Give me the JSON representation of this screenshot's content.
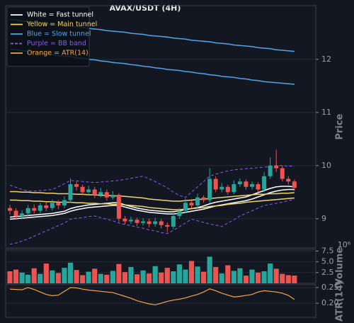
{
  "chart_data": [
    {
      "type": "candlestick",
      "title": "AVAX/USDT (4H)",
      "ylabel": "Price",
      "ylim": [
        8.45,
        13.01
      ],
      "yticks": [
        9,
        10,
        11,
        12
      ],
      "grid": true,
      "legend": "upper left",
      "up_color": "#26a69a",
      "down_color": "#ef5350",
      "open": [
        9.2,
        9.15,
        9.05,
        9.1,
        9.2,
        9.15,
        9.25,
        9.2,
        9.3,
        9.25,
        9.35,
        9.65,
        9.6,
        9.5,
        9.55,
        9.45,
        9.5,
        9.4,
        9.45,
        9.0,
        8.95,
        8.98,
        8.92,
        8.95,
        8.9,
        8.95,
        8.88,
        8.85,
        9.05,
        9.15,
        9.3,
        9.25,
        9.4,
        9.35,
        9.75,
        9.55,
        9.6,
        9.5,
        9.65,
        9.7,
        9.6,
        9.65,
        9.55,
        9.8,
        10.0,
        9.95,
        9.75,
        9.7
      ],
      "high": [
        9.26,
        9.2,
        9.16,
        9.26,
        9.27,
        9.3,
        9.32,
        9.36,
        9.35,
        9.42,
        9.76,
        9.7,
        9.64,
        9.62,
        9.6,
        9.58,
        9.55,
        9.52,
        9.48,
        9.05,
        9.04,
        9.02,
        9.01,
        9.0,
        9.02,
        8.99,
        8.93,
        9.1,
        9.2,
        9.38,
        9.34,
        9.47,
        9.44,
        9.95,
        9.8,
        9.67,
        9.64,
        9.72,
        9.76,
        9.74,
        9.7,
        9.69,
        9.88,
        10.15,
        10.3,
        10.0,
        9.8,
        9.74
      ],
      "low": [
        9.08,
        8.98,
        8.99,
        9.04,
        9.1,
        9.1,
        9.14,
        9.15,
        9.18,
        9.2,
        9.3,
        9.53,
        9.44,
        9.45,
        9.39,
        9.4,
        9.34,
        9.36,
        8.94,
        8.9,
        8.9,
        8.86,
        8.87,
        8.84,
        8.85,
        8.82,
        8.75,
        8.8,
        9.0,
        9.1,
        9.2,
        9.2,
        9.3,
        9.3,
        9.5,
        9.5,
        9.45,
        9.46,
        9.6,
        9.55,
        9.55,
        9.5,
        9.5,
        9.75,
        9.88,
        9.7,
        9.64,
        9.52
      ],
      "close": [
        9.15,
        9.05,
        9.1,
        9.2,
        9.15,
        9.25,
        9.2,
        9.3,
        9.25,
        9.35,
        9.65,
        9.6,
        9.5,
        9.55,
        9.45,
        9.5,
        9.4,
        9.45,
        9.0,
        8.95,
        8.98,
        8.92,
        8.95,
        8.9,
        8.95,
        8.88,
        8.85,
        9.05,
        9.15,
        9.3,
        9.25,
        9.4,
        9.35,
        9.75,
        9.55,
        9.6,
        9.5,
        9.65,
        9.7,
        9.6,
        9.65,
        9.55,
        9.8,
        10.0,
        9.95,
        9.75,
        9.7,
        9.58
      ],
      "series": [
        {
          "name": "White = Fast tunnel",
          "color": "#ffffff",
          "values": [
            [
              9.03,
              9.04,
              9.05,
              9.06,
              9.07,
              9.08,
              9.09,
              9.1,
              9.12,
              9.14,
              9.19,
              9.22,
              9.24,
              9.26,
              9.27,
              9.28,
              9.29,
              9.3,
              9.3,
              9.26,
              9.23,
              9.2,
              9.18,
              9.16,
              9.15,
              9.14,
              9.13,
              9.13,
              9.15,
              9.17,
              9.19,
              9.21,
              9.24,
              9.28,
              9.31,
              9.33,
              9.35,
              9.37,
              9.39,
              9.41,
              9.45,
              9.49,
              9.53,
              9.57,
              9.6,
              9.61,
              9.61,
              9.6
            ],
            [
              8.99,
              9.0,
              9.01,
              9.02,
              9.03,
              9.04,
              9.05,
              9.06,
              9.08,
              9.1,
              9.14,
              9.17,
              9.19,
              9.21,
              9.22,
              9.23,
              9.24,
              9.25,
              9.25,
              9.22,
              9.19,
              9.16,
              9.14,
              9.12,
              9.11,
              9.1,
              9.09,
              9.09,
              9.1,
              9.12,
              9.14,
              9.16,
              9.18,
              9.21,
              9.24,
              9.26,
              9.28,
              9.3,
              9.32,
              9.34,
              9.37,
              9.41,
              9.45,
              9.49,
              9.52,
              9.54,
              9.55,
              9.55
            ]
          ]
        },
        {
          "name": "Yellow = Main tunnel",
          "color": "#f2d36b",
          "values": [
            [
              9.51,
              9.51,
              9.5,
              9.5,
              9.49,
              9.49,
              9.48,
              9.48,
              9.47,
              9.47,
              9.47,
              9.46,
              9.46,
              9.45,
              9.45,
              9.44,
              9.44,
              9.43,
              9.43,
              9.42,
              9.41,
              9.4,
              9.39,
              9.37,
              9.36,
              9.35,
              9.34,
              9.33,
              9.33,
              9.34,
              9.35,
              9.36,
              9.37,
              9.38,
              9.39,
              9.4,
              9.41,
              9.42,
              9.43,
              9.44,
              9.45,
              9.46,
              9.46,
              9.47,
              9.47,
              9.48,
              9.48,
              9.49
            ],
            [
              9.35,
              9.35,
              9.34,
              9.34,
              9.33,
              9.33,
              9.32,
              9.32,
              9.31,
              9.31,
              9.31,
              9.3,
              9.3,
              9.29,
              9.29,
              9.28,
              9.28,
              9.27,
              9.27,
              9.26,
              9.25,
              9.24,
              9.23,
              9.21,
              9.2,
              9.19,
              9.18,
              9.17,
              9.17,
              9.18,
              9.19,
              9.2,
              9.21,
              9.23,
              9.24,
              9.25,
              9.27,
              9.28,
              9.29,
              9.31,
              9.32,
              9.33,
              9.34,
              9.35,
              9.36,
              9.37,
              9.38,
              9.39
            ]
          ]
        },
        {
          "name": "Blue = Slow tunnel",
          "color": "#4da6e8",
          "values": [
            [
              12.75,
              12.74,
              12.72,
              12.71,
              12.7,
              12.69,
              12.67,
              12.66,
              12.65,
              12.63,
              12.62,
              12.61,
              12.6,
              12.58,
              12.57,
              12.56,
              12.54,
              12.53,
              12.52,
              12.51,
              12.49,
              12.48,
              12.47,
              12.45,
              12.44,
              12.43,
              12.42,
              12.4,
              12.39,
              12.38,
              12.36,
              12.35,
              12.34,
              12.33,
              12.31,
              12.3,
              12.29,
              12.27,
              12.26,
              12.25,
              12.24,
              12.22,
              12.21,
              12.2,
              12.18,
              12.17,
              12.16,
              12.15
            ],
            [
              12.19,
              12.18,
              12.16,
              12.15,
              12.13,
              12.12,
              12.1,
              12.09,
              12.07,
              12.06,
              12.05,
              12.03,
              12.02,
              12.0,
              11.99,
              11.97,
              11.96,
              11.94,
              11.93,
              11.92,
              11.9,
              11.89,
              11.87,
              11.86,
              11.84,
              11.83,
              11.81,
              11.8,
              11.79,
              11.77,
              11.76,
              11.74,
              11.73,
              11.71,
              11.7,
              11.68,
              11.67,
              11.66,
              11.64,
              11.63,
              11.61,
              11.6,
              11.58,
              11.57,
              11.56,
              11.55,
              11.54,
              11.53
            ]
          ]
        },
        {
          "name": "Purple = BB band",
          "color": "#8a5cf0",
          "dashed": true,
          "values": [
            [
              9.63,
              9.59,
              9.55,
              9.52,
              9.52,
              9.53,
              9.54,
              9.55,
              9.6,
              9.66,
              9.72,
              9.71,
              9.7,
              9.69,
              9.68,
              9.69,
              9.7,
              9.71,
              9.72,
              9.74,
              9.76,
              9.78,
              9.8,
              9.75,
              9.7,
              9.64,
              9.58,
              9.5,
              9.44,
              9.4,
              9.5,
              9.6,
              9.7,
              9.8,
              9.84,
              9.87,
              9.9,
              9.92,
              9.93,
              9.94,
              9.95,
              9.96,
              9.97,
              9.98,
              10.0,
              10.0,
              9.99,
              9.99
            ],
            [
              8.52,
              8.54,
              8.58,
              8.62,
              8.67,
              8.72,
              8.77,
              8.82,
              8.87,
              8.92,
              8.99,
              9.01,
              9.02,
              9.04,
              9.05,
              9.02,
              8.99,
              8.96,
              8.92,
              8.89,
              8.87,
              8.84,
              8.82,
              8.79,
              8.77,
              8.74,
              8.72,
              8.78,
              8.85,
              8.92,
              8.99,
              8.96,
              8.93,
              8.9,
              8.88,
              8.85,
              8.92,
              8.98,
              9.05,
              9.1,
              9.15,
              9.2,
              9.25,
              9.27,
              9.29,
              9.31,
              9.34,
              9.36
            ]
          ]
        }
      ]
    },
    {
      "type": "bar",
      "ylabel": "Volume",
      "offset_text": "10⁶",
      "ylim": [
        0,
        7.9
      ],
      "yticks": [
        2.5,
        {
          "value": 5,
          "label": "5.0"
        },
        7.5
      ],
      "values": [
        2.8,
        3.2,
        2.5,
        2.0,
        3.5,
        2.2,
        4.6,
        3.0,
        2.4,
        3.6,
        4.8,
        3.1,
        1.9,
        2.7,
        3.4,
        2.2,
        2.0,
        2.9,
        4.5,
        2.6,
        3.8,
        2.1,
        3.0,
        2.3,
        4.0,
        2.5,
        3.6,
        2.8,
        4.4,
        3.2,
        5.2,
        3.9,
        2.7,
        6.2,
        3.8,
        2.3,
        4.2,
        2.9,
        3.5,
        1.8,
        3.2,
        2.5,
        2.8,
        4.6,
        3.4,
        2.2,
        1.9,
        1.8
      ]
    },
    {
      "type": "line",
      "ylabel": "ATR(14)",
      "ylim": [
        0.155,
        0.259
      ],
      "yticks": [
        {
          "value": 0.2,
          "label": "0.20"
        },
        0.25
      ],
      "series": [
        {
          "name": "Orange = ATR(14)",
          "color": "#f5a742",
          "values": [
            0.245,
            0.244,
            0.243,
            0.25,
            0.244,
            0.236,
            0.228,
            0.224,
            0.226,
            0.238,
            0.25,
            0.249,
            0.245,
            0.242,
            0.24,
            0.238,
            0.236,
            0.234,
            0.228,
            0.222,
            0.216,
            0.208,
            0.203,
            0.198,
            0.195,
            0.2,
            0.206,
            0.21,
            0.213,
            0.217,
            0.223,
            0.228,
            0.236,
            0.246,
            0.24,
            0.232,
            0.226,
            0.22,
            0.222,
            0.225,
            0.228,
            0.236,
            0.24,
            0.238,
            0.236,
            0.232,
            0.225,
            0.212
          ]
        }
      ]
    }
  ]
}
